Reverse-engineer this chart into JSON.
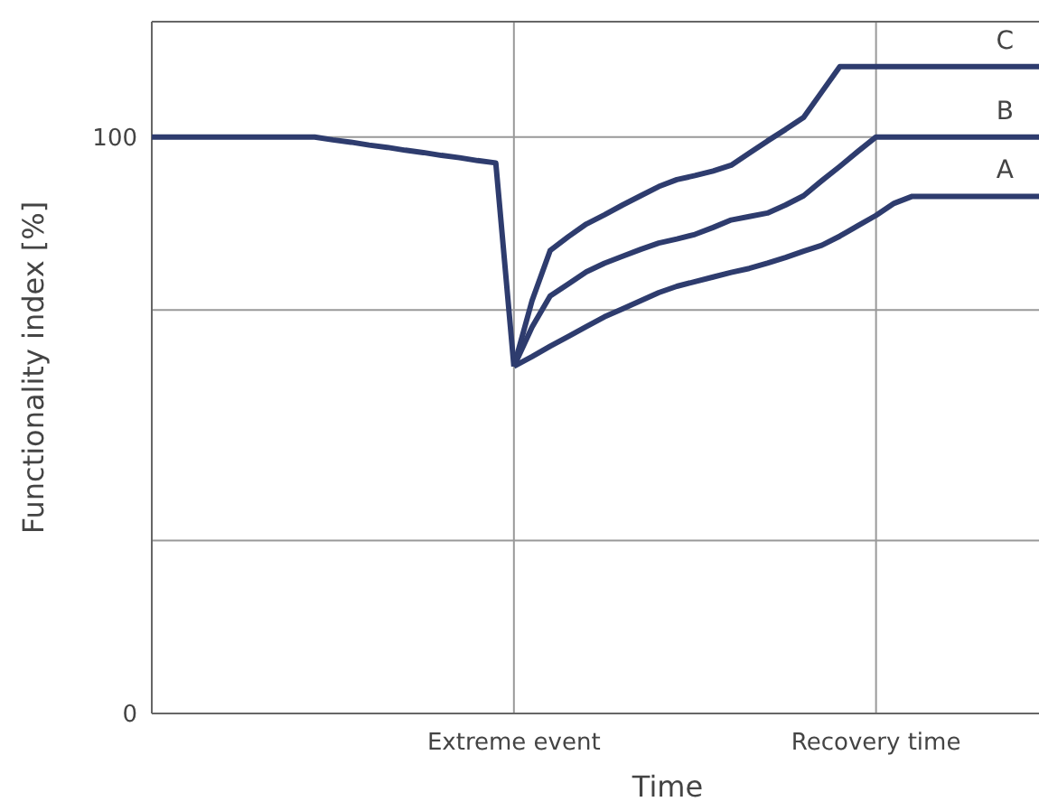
{
  "chart_data": {
    "type": "line",
    "xlabel": "Time",
    "ylabel": "Functionality index [%]",
    "categories": [
      null,
      null,
      null,
      null,
      null,
      null,
      null,
      null,
      null,
      null,
      null,
      null,
      null,
      null,
      null,
      null,
      null,
      null,
      null,
      null,
      "Extreme event",
      null,
      null,
      null,
      null,
      null,
      null,
      null,
      null,
      null,
      null,
      null,
      null,
      null,
      null,
      null,
      null,
      null,
      null,
      null,
      "Recovery time",
      null,
      null,
      null,
      null,
      null,
      null,
      null,
      null,
      null
    ],
    "ylim": [
      0,
      120
    ],
    "yticks": [
      0,
      {
        "value": 30,
        "label": null
      },
      {
        "value": 70,
        "label": null
      },
      100
    ],
    "grid": true,
    "legend": false,
    "series": [
      {
        "color": "#2e3c6e",
        "values": [
          100,
          100,
          100,
          100,
          100,
          100,
          100,
          100,
          100,
          100,
          99.5,
          99.1,
          98.6,
          98.2,
          97.7,
          97.3,
          96.8,
          96.4,
          95.9,
          95.5,
          60.2,
          null,
          null,
          null,
          null,
          null,
          null,
          null,
          null,
          null,
          null,
          null,
          null,
          null,
          null,
          null,
          null,
          null,
          null,
          null,
          null,
          null,
          null,
          null,
          null,
          null,
          null,
          null,
          null,
          null
        ]
      },
      {
        "name": "C",
        "color": "#2e3c6e",
        "values": [
          null,
          null,
          null,
          null,
          null,
          null,
          null,
          null,
          null,
          null,
          null,
          null,
          null,
          null,
          null,
          null,
          null,
          null,
          null,
          null,
          60.2,
          71.6,
          80.3,
          82.7,
          84.9,
          86.5,
          88.2,
          89.8,
          91.4,
          92.6,
          93.3,
          94.1,
          95.1,
          97.2,
          99.3,
          101.3,
          103.4,
          107.8,
          112.2,
          112.2,
          112.2,
          112.2,
          112.2,
          112.2,
          112.2,
          112.2,
          112.2,
          112.2,
          112.2,
          112.2
        ]
      },
      {
        "name": "B",
        "color": "#2e3c6e",
        "values": [
          null,
          null,
          null,
          null,
          null,
          null,
          null,
          null,
          null,
          null,
          null,
          null,
          null,
          null,
          null,
          null,
          null,
          null,
          null,
          null,
          60.2,
          67.0,
          72.4,
          74.5,
          76.6,
          78.1,
          79.3,
          80.5,
          81.6,
          82.3,
          83.1,
          84.3,
          85.6,
          86.2,
          86.8,
          88.2,
          89.8,
          92.4,
          94.9,
          97.5,
          100,
          100,
          100,
          100,
          100,
          100,
          100,
          100,
          100,
          100
        ]
      },
      {
        "name": "A",
        "color": "#2e3c6e",
        "values": [
          null,
          null,
          null,
          null,
          null,
          null,
          null,
          null,
          null,
          null,
          null,
          null,
          null,
          null,
          null,
          null,
          null,
          null,
          null,
          null,
          60.2,
          61.9,
          63.7,
          65.4,
          67.1,
          68.8,
          70.2,
          71.6,
          73.0,
          74.1,
          74.9,
          75.7,
          76.5,
          77.2,
          78.1,
          79.1,
          80.2,
          81.2,
          82.8,
          84.6,
          86.4,
          88.5,
          89.7,
          89.7,
          89.7,
          89.7,
          89.7,
          89.7,
          89.7,
          89.7
        ]
      }
    ]
  }
}
